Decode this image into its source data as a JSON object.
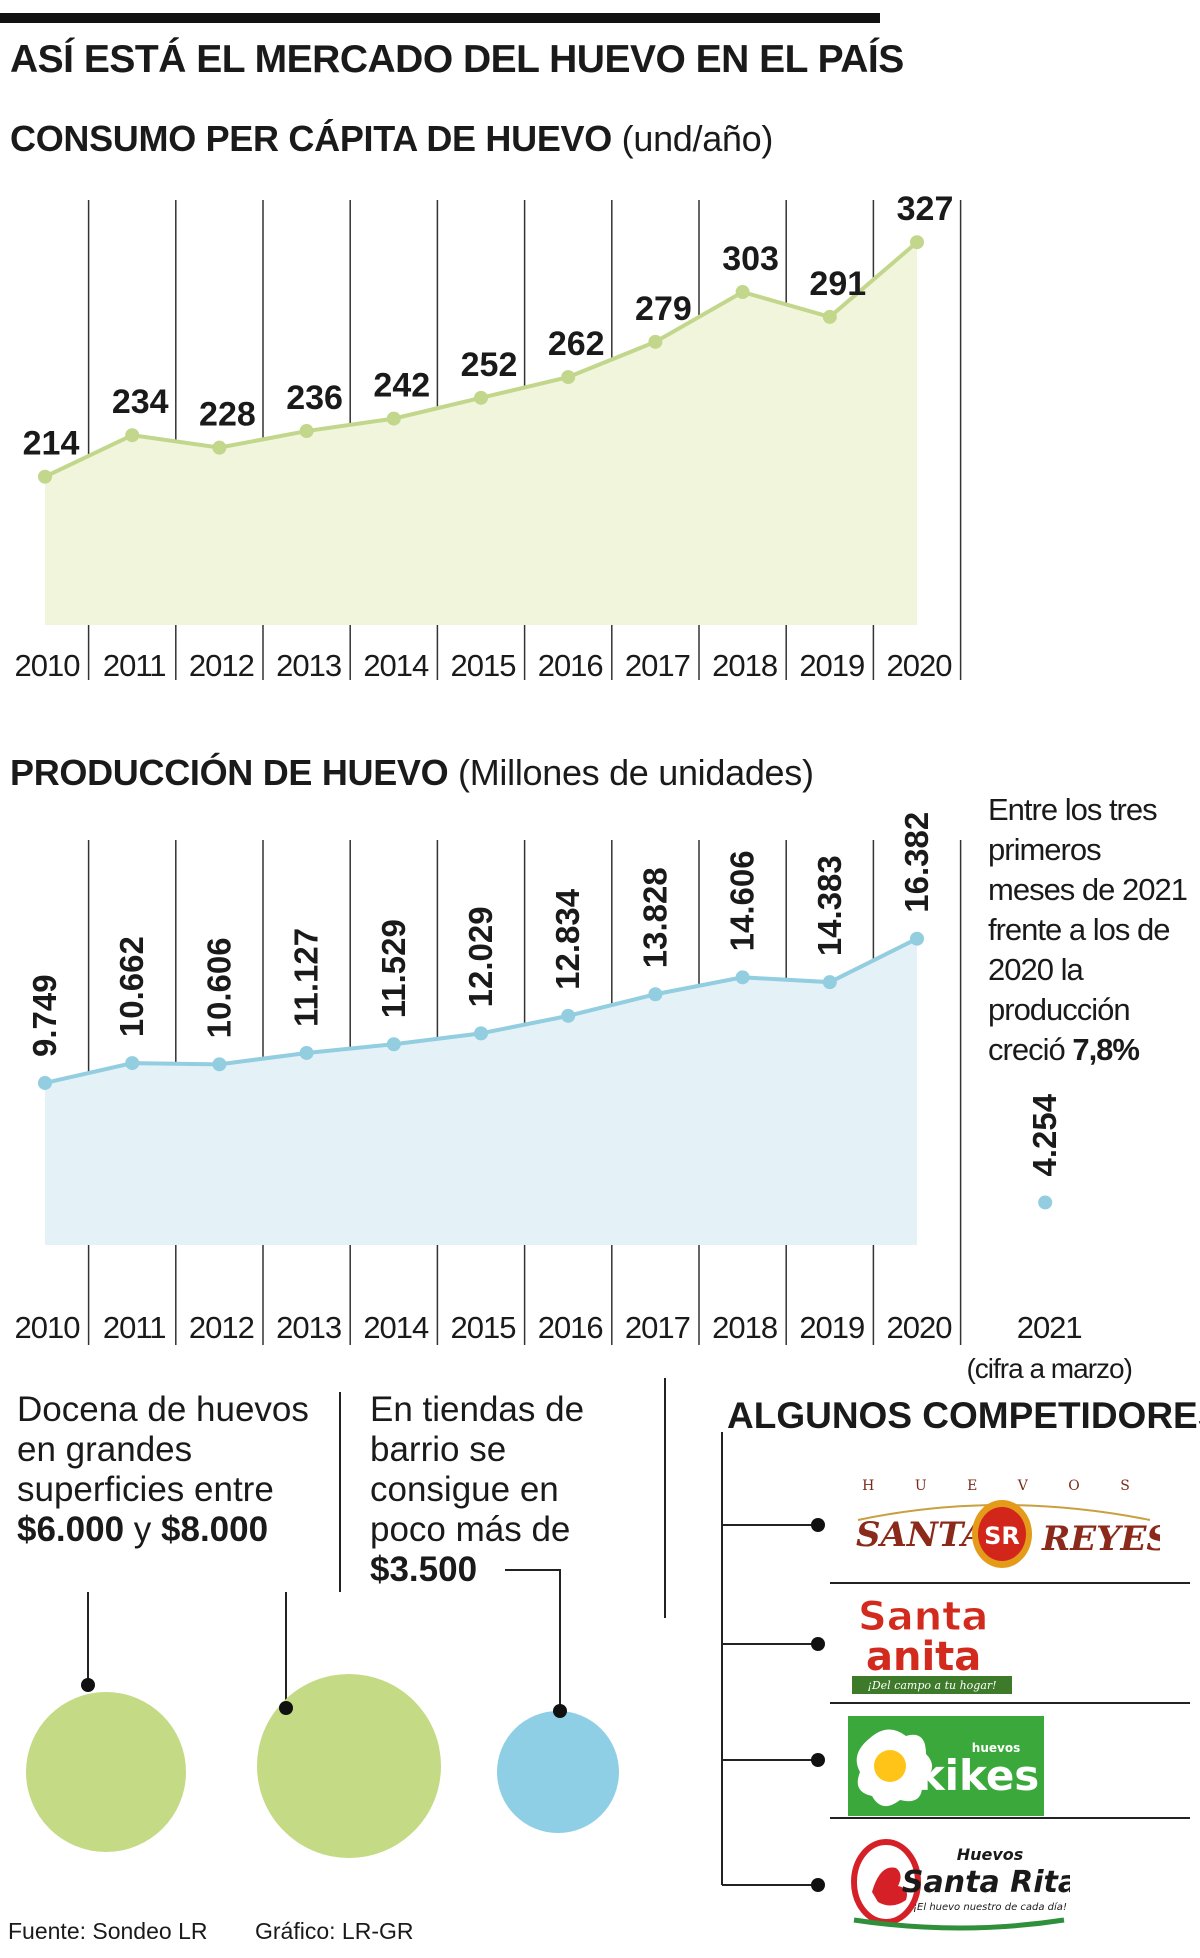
{
  "title": "ASÍ ESTÁ EL MERCADO DEL HUEVO EN EL PAÍS",
  "colors": {
    "consumo_line": "#c2d68c",
    "consumo_fill": "#f1f5dc",
    "produccion_line": "#92cde0",
    "produccion_fill": "#e4f2f8",
    "circle_green": "#c4da84",
    "circle_blue": "#8fcfe6"
  },
  "chart_data": [
    {
      "type": "area",
      "title": "CONSUMO PER CÁPITA DE HUEVO",
      "unit": "(und/año)",
      "categories": [
        "2010",
        "2011",
        "2012",
        "2013",
        "2014",
        "2015",
        "2016",
        "2017",
        "2018",
        "2019",
        "2020"
      ],
      "values": [
        214,
        234,
        228,
        236,
        242,
        252,
        262,
        279,
        303,
        291,
        327
      ],
      "labels": [
        "214",
        "234",
        "228",
        "236",
        "242",
        "252",
        "262",
        "279",
        "303",
        "291",
        "327"
      ],
      "ylim": [
        170,
        330
      ]
    },
    {
      "type": "area",
      "title": "PRODUCCIÓN DE HUEVO",
      "unit": "(Millones de unidades)",
      "categories": [
        "2010",
        "2011",
        "2012",
        "2013",
        "2014",
        "2015",
        "2016",
        "2017",
        "2018",
        "2019",
        "2020"
      ],
      "values": [
        9749,
        10662,
        10606,
        11127,
        11529,
        12029,
        12834,
        13828,
        14606,
        14383,
        16382
      ],
      "labels": [
        "9.749",
        "10.662",
        "10.606",
        "11.127",
        "11.529",
        "12.029",
        "12.834",
        "13.828",
        "14.606",
        "14.383",
        "16.382"
      ],
      "ylim": [
        0,
        20000
      ],
      "extra_point": {
        "category": "2021",
        "sub_label": "(cifra a marzo)",
        "value": 4254,
        "label": "4.254"
      }
    }
  ],
  "note": {
    "text": "Entre los tres primeros meses de 2021 frente a los de 2020 la producción creció",
    "highlight": "7,8%"
  },
  "price_info": {
    "supermarket": {
      "text": "Docena de huevos en grandes superficies entre",
      "price_low": "$6.000",
      "connector": "y",
      "price_high": "$8.000"
    },
    "neighborhood": {
      "text": "En tiendas de barrio se consigue en poco más de",
      "price": "$3.500"
    }
  },
  "competitors": {
    "title": "ALGUNOS COMPETIDORES",
    "logos": [
      {
        "name": "Huevos Santa Reyes",
        "top": "H U E V O S",
        "left": "SANTA",
        "badge": "SR",
        "right": "REYES"
      },
      {
        "name": "Santa Anita",
        "line1": "Santa",
        "line2": "anita",
        "tagline": "¡Del campo a tu hogar!"
      },
      {
        "name": "Huevos Kikes",
        "small": "huevos",
        "brand": "kikes"
      },
      {
        "name": "Huevos Santa Rita",
        "small": "Huevos",
        "brand": "Santa Rita",
        "tagline": "¡El huevo nuestro de cada día!"
      }
    ]
  },
  "footer": {
    "source": "Fuente: Sondeo LR",
    "credit": "Gráfico: LR-GR"
  }
}
